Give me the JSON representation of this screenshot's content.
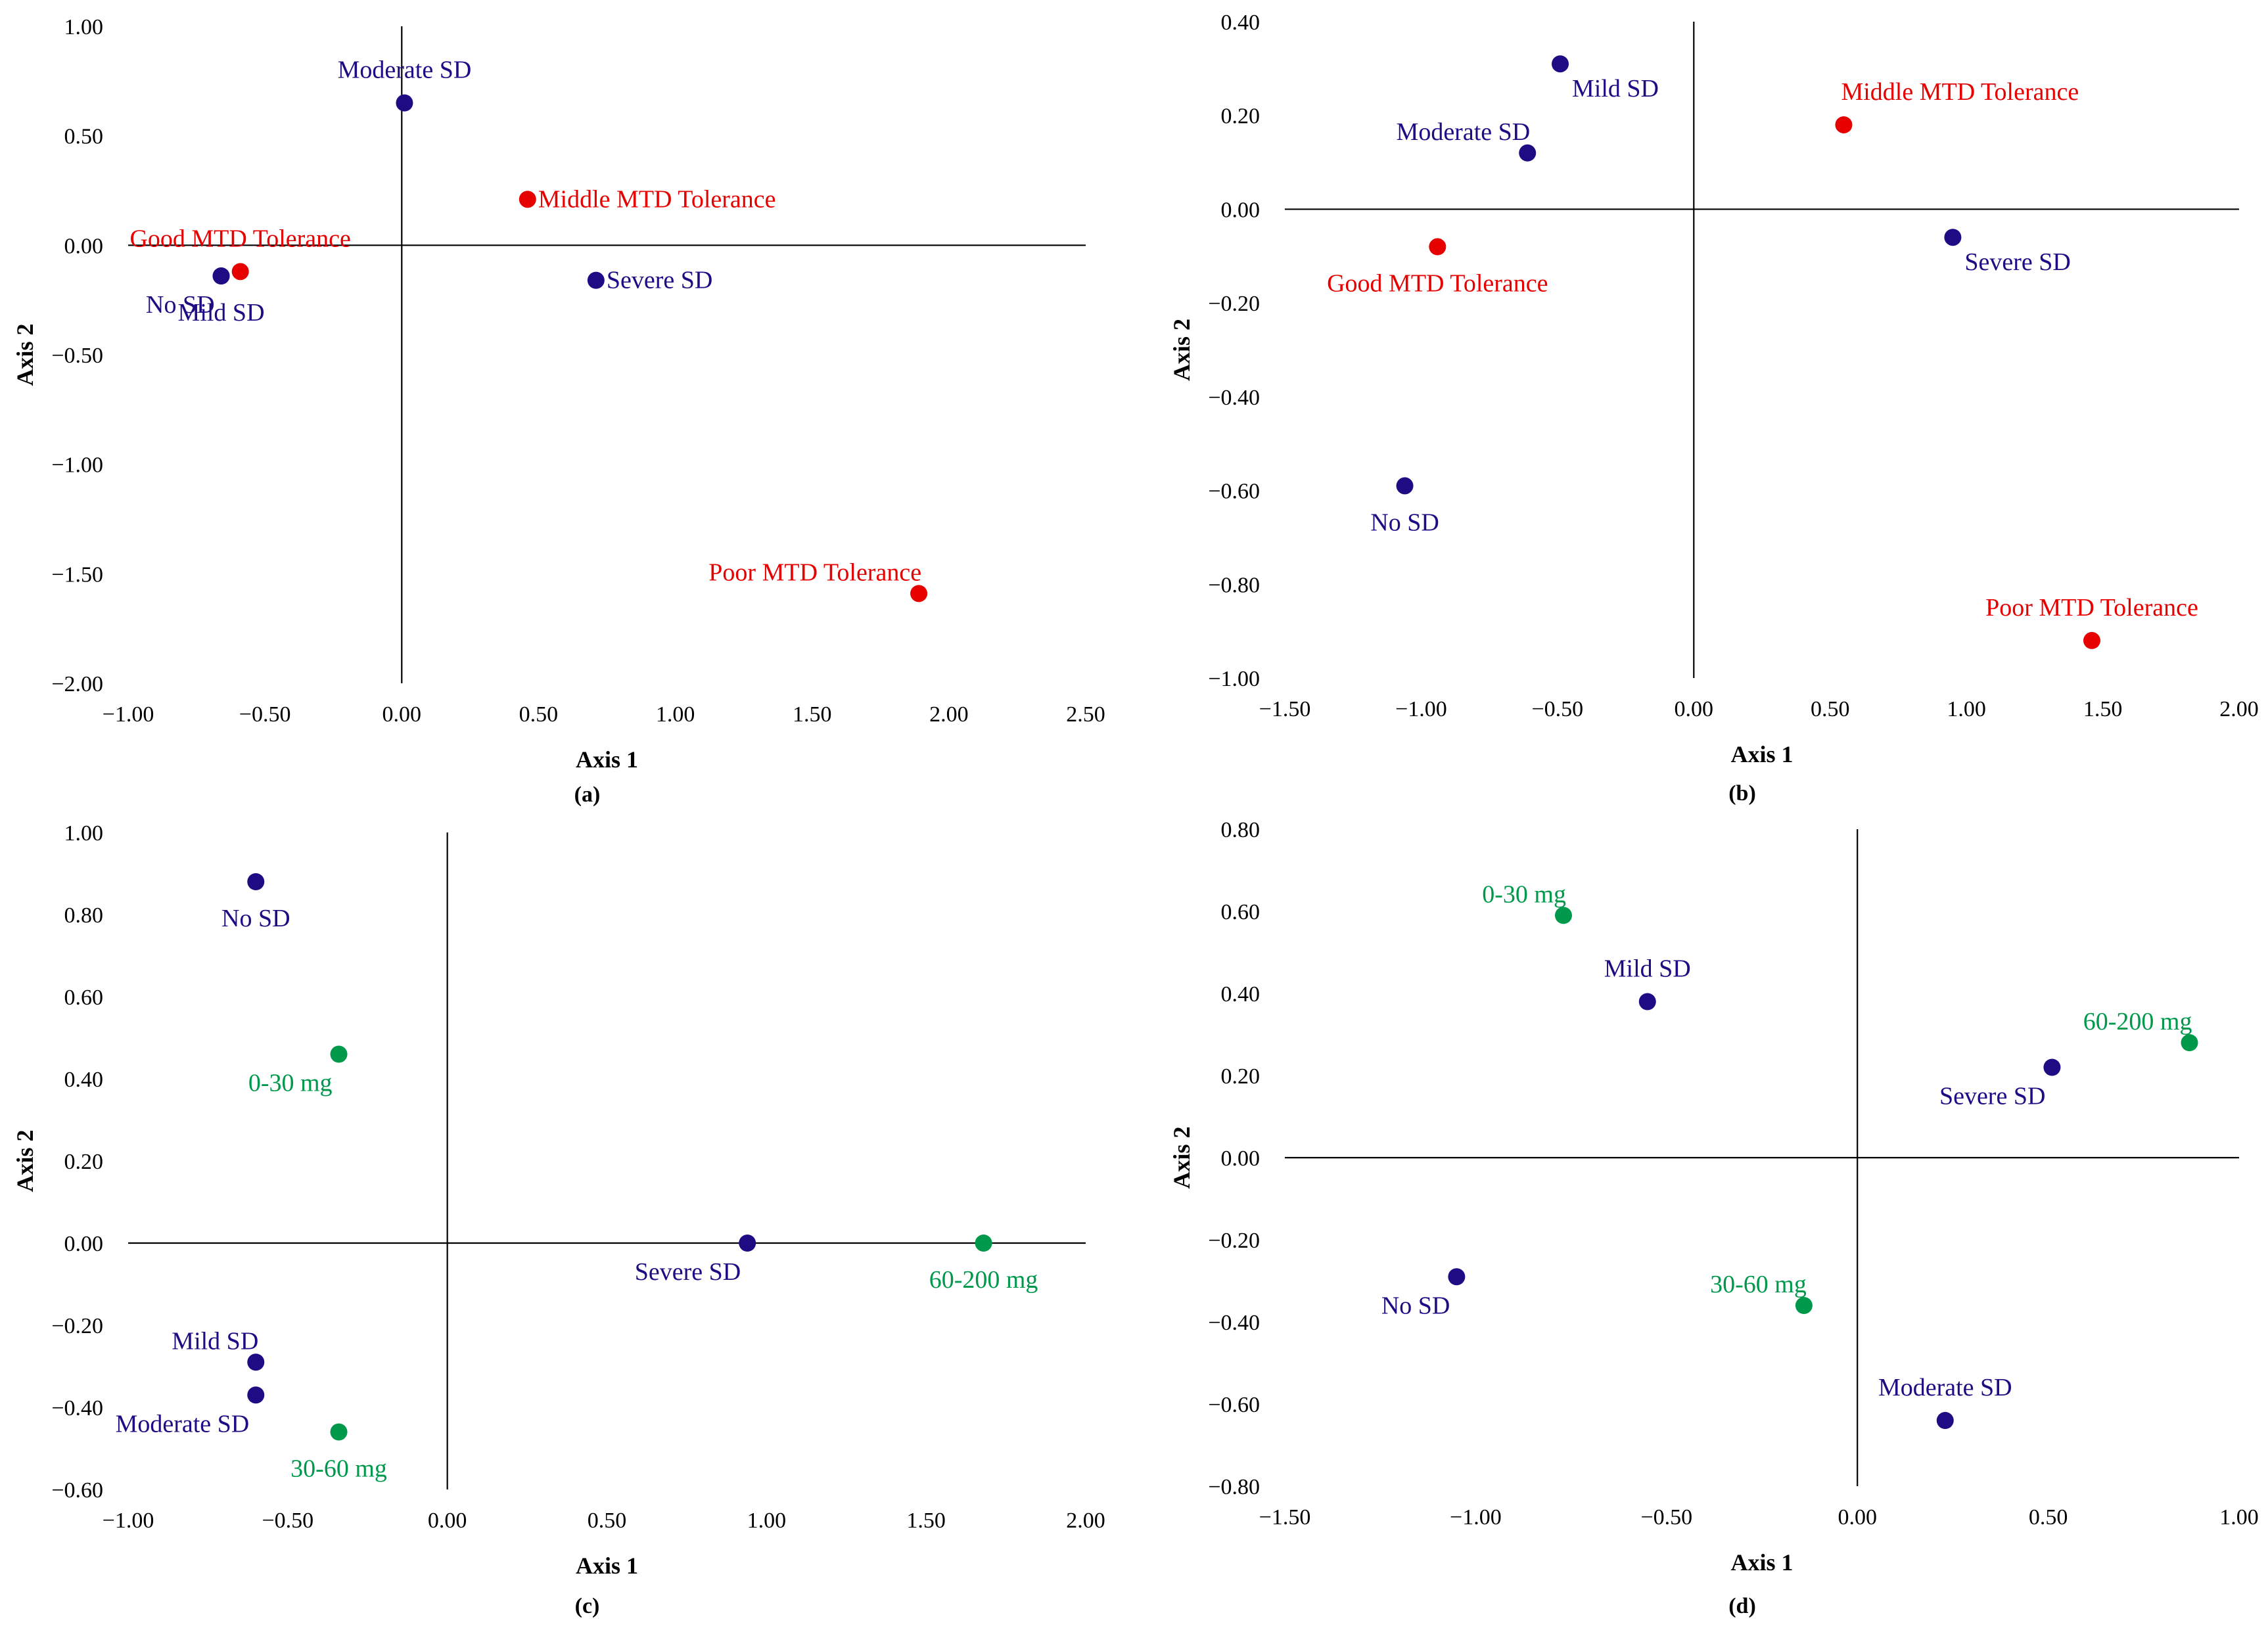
{
  "colors": {
    "sd": "#1F0C85",
    "tolerance": "#E60000",
    "dose": "#00994C"
  },
  "chart_data": [
    {
      "type": "scatter",
      "caption": "(a)",
      "xlabel": "Axis 1",
      "ylabel": "Axis 2",
      "xlim": [
        -1.0,
        2.5
      ],
      "ylim": [
        -2.0,
        1.0
      ],
      "xticks": [
        -1.0,
        -0.5,
        0.0,
        0.5,
        1.0,
        1.5,
        2.0,
        2.5
      ],
      "yticks": [
        -2.0,
        -1.5,
        -1.0,
        -0.5,
        0.0,
        0.5,
        1.0
      ],
      "xtick_labels": [
        "−1.00",
        "−0.50",
        "0.00",
        "0.50",
        "1.00",
        "1.50",
        "2.00",
        "2.50"
      ],
      "ytick_labels": [
        "−2.00",
        "−1.50",
        "−1.00",
        "−0.50",
        "0.00",
        "0.50",
        "1.00"
      ],
      "points": [
        {
          "label": "Moderate SD",
          "x": 0.01,
          "y": 0.65,
          "group": "sd",
          "anchor": "above"
        },
        {
          "label": "Middle MTD Tolerance",
          "x": 0.46,
          "y": 0.21,
          "group": "tolerance",
          "anchor": "right"
        },
        {
          "label": "Good MTD Tolerance",
          "x": -0.59,
          "y": -0.12,
          "group": "tolerance",
          "anchor": "above"
        },
        {
          "label": "No SD",
          "x": -0.66,
          "y": -0.14,
          "group": "sd",
          "anchor": "below-left"
        },
        {
          "label": "Mild SD",
          "x": -0.66,
          "y": -0.14,
          "group": "sd",
          "anchor": "below"
        },
        {
          "label": "Severe SD",
          "x": 0.71,
          "y": -0.16,
          "group": "sd",
          "anchor": "right"
        },
        {
          "label": "Poor MTD Tolerance",
          "x": 1.89,
          "y": -1.59,
          "group": "tolerance",
          "anchor": "above-left"
        }
      ]
    },
    {
      "type": "scatter",
      "caption": "(b)",
      "xlabel": "Axis 1",
      "ylabel": "Axis 2",
      "xlim": [
        -1.5,
        2.0
      ],
      "ylim": [
        -1.0,
        0.4
      ],
      "xticks": [
        -1.5,
        -1.0,
        -0.5,
        0.0,
        0.5,
        1.0,
        1.5,
        2.0
      ],
      "yticks": [
        -1.0,
        -0.8,
        -0.6,
        -0.4,
        -0.2,
        0.0,
        0.2,
        0.4
      ],
      "xtick_labels": [
        "−1.50",
        "−1.00",
        "−0.50",
        "0.00",
        "0.50",
        "1.00",
        "1.50",
        "2.00"
      ],
      "ytick_labels": [
        "−1.00",
        "−0.80",
        "−0.60",
        "−0.40",
        "−0.20",
        "0.00",
        "0.20",
        "0.40"
      ],
      "points": [
        {
          "label": "Mild SD",
          "x": -0.49,
          "y": 0.31,
          "group": "sd",
          "anchor": "below-right"
        },
        {
          "label": "Moderate SD",
          "x": -0.61,
          "y": 0.12,
          "group": "sd",
          "anchor": "above-left"
        },
        {
          "label": "Middle MTD Tolerance",
          "x": 0.55,
          "y": 0.18,
          "group": "tolerance",
          "anchor": "above-right"
        },
        {
          "label": "Good MTD Tolerance",
          "x": -0.94,
          "y": -0.08,
          "group": "tolerance",
          "anchor": "below"
        },
        {
          "label": "Severe SD",
          "x": 0.95,
          "y": -0.06,
          "group": "sd",
          "anchor": "below-right"
        },
        {
          "label": "No SD",
          "x": -1.06,
          "y": -0.59,
          "group": "sd",
          "anchor": "below"
        },
        {
          "label": "Poor MTD Tolerance",
          "x": 1.46,
          "y": -0.92,
          "group": "tolerance",
          "anchor": "above"
        }
      ]
    },
    {
      "type": "scatter",
      "caption": "(c)",
      "xlabel": "Axis 1",
      "ylabel": "Axis 2",
      "xlim": [
        -1.0,
        2.0
      ],
      "ylim": [
        -0.6,
        1.0
      ],
      "xticks": [
        -1.0,
        -0.5,
        0.0,
        0.5,
        1.0,
        1.5,
        2.0
      ],
      "yticks": [
        -0.6,
        -0.4,
        -0.2,
        0.0,
        0.2,
        0.4,
        0.6,
        0.8,
        1.0
      ],
      "xtick_labels": [
        "−1.00",
        "−0.50",
        "0.00",
        "0.50",
        "1.00",
        "1.50",
        "2.00"
      ],
      "ytick_labels": [
        "−0.60",
        "−0.40",
        "−0.20",
        "0.00",
        "0.20",
        "0.40",
        "0.60",
        "0.80",
        "1.00"
      ],
      "points": [
        {
          "label": "No SD",
          "x": -0.6,
          "y": 0.88,
          "group": "sd",
          "anchor": "below"
        },
        {
          "label": "0-30 mg",
          "x": -0.34,
          "y": 0.46,
          "group": "dose",
          "anchor": "below-left"
        },
        {
          "label": "Severe SD",
          "x": 0.94,
          "y": 0.0,
          "group": "sd",
          "anchor": "below-left"
        },
        {
          "label": "60-200 mg",
          "x": 1.68,
          "y": 0.0,
          "group": "dose",
          "anchor": "below"
        },
        {
          "label": "Mild SD",
          "x": -0.6,
          "y": -0.29,
          "group": "sd",
          "anchor": "above-left"
        },
        {
          "label": "Moderate SD",
          "x": -0.6,
          "y": -0.37,
          "group": "sd",
          "anchor": "below-left"
        },
        {
          "label": "30-60 mg",
          "x": -0.34,
          "y": -0.46,
          "group": "dose",
          "anchor": "below"
        }
      ]
    },
    {
      "type": "scatter",
      "caption": "(d)",
      "xlabel": "Axis 1",
      "ylabel": "Axis 2",
      "xlim": [
        -1.5,
        1.0
      ],
      "ylim": [
        -0.8,
        0.8
      ],
      "xticks": [
        -1.5,
        -1.0,
        -0.5,
        0.0,
        0.5,
        1.0
      ],
      "yticks": [
        -0.8,
        -0.6,
        -0.4,
        -0.2,
        0.0,
        0.2,
        0.4,
        0.6,
        0.8
      ],
      "xtick_labels": [
        "−1.50",
        "−1.00",
        "−0.50",
        "0.00",
        "0.50",
        "1.00"
      ],
      "ytick_labels": [
        "−0.80",
        "−0.60",
        "−0.40",
        "−0.20",
        "0.00",
        "0.20",
        "0.40",
        "0.60",
        "0.80"
      ],
      "points": [
        {
          "label": "0-30 mg",
          "x": -0.77,
          "y": 0.59,
          "group": "dose",
          "anchor": "above-left"
        },
        {
          "label": "Mild SD",
          "x": -0.55,
          "y": 0.38,
          "group": "sd",
          "anchor": "above"
        },
        {
          "label": "60-200 mg",
          "x": 0.87,
          "y": 0.28,
          "group": "dose",
          "anchor": "above-left"
        },
        {
          "label": "Severe SD",
          "x": 0.51,
          "y": 0.22,
          "group": "sd",
          "anchor": "below-left"
        },
        {
          "label": "No SD",
          "x": -1.05,
          "y": -0.29,
          "group": "sd",
          "anchor": "below-left"
        },
        {
          "label": "30-60 mg",
          "x": -0.14,
          "y": -0.36,
          "group": "dose",
          "anchor": "above-left"
        },
        {
          "label": "Moderate SD",
          "x": 0.23,
          "y": -0.64,
          "group": "sd",
          "anchor": "above"
        }
      ]
    }
  ]
}
